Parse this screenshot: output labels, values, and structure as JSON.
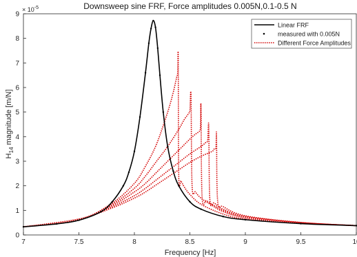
{
  "chart_data": {
    "type": "line",
    "title": "Downsweep sine FRF, Force amplitudes 0.005N,0.1-0.5 N",
    "xlabel": "Frequency [Hz]",
    "ylabel_main": "H",
    "ylabel_sub": "14",
    "ylabel_rest": " magnitude [m/N]",
    "y_exponent_base": "× 10",
    "y_exponent": "-5",
    "xlim": [
      7,
      10
    ],
    "ylim": [
      0,
      9
    ],
    "grid": false,
    "legend_position": "top-right",
    "xticks": [
      7,
      7.5,
      8,
      8.5,
      9,
      9.5,
      10
    ],
    "xtick_labels": [
      "7",
      "7.5",
      "8",
      "8.5",
      "9",
      "9.5",
      "10"
    ],
    "yticks": [
      0,
      1,
      2,
      3,
      4,
      5,
      6,
      7,
      8,
      9
    ],
    "ytick_labels": [
      "0",
      "1",
      "2",
      "3",
      "4",
      "5",
      "6",
      "7",
      "8",
      "9"
    ],
    "series": [
      {
        "name": "Linear FRF",
        "style": "solid",
        "color": "#000000",
        "x": [
          7.0,
          7.3,
          7.5,
          7.7,
          7.8,
          7.9,
          7.95,
          8.0,
          8.05,
          8.1,
          8.13,
          8.15,
          8.17,
          8.19,
          8.21,
          8.23,
          8.26,
          8.3,
          8.35,
          8.4,
          8.5,
          8.6,
          8.8,
          9.0,
          9.5,
          10.0
        ],
        "y": [
          0.33,
          0.45,
          0.6,
          0.95,
          1.35,
          2.0,
          2.55,
          3.4,
          4.8,
          6.6,
          7.8,
          8.4,
          8.72,
          8.45,
          7.6,
          6.5,
          5.0,
          3.6,
          2.6,
          2.0,
          1.35,
          1.05,
          0.75,
          0.62,
          0.46,
          0.38
        ]
      },
      {
        "name": "measured with 0.005N",
        "style": "dots",
        "color": "#000000",
        "x": [
          7.0,
          7.3,
          7.5,
          7.7,
          7.8,
          7.9,
          7.95,
          8.0,
          8.05,
          8.1,
          8.13,
          8.15,
          8.17,
          8.19,
          8.21,
          8.23,
          8.26,
          8.3,
          8.35,
          8.4,
          8.5,
          8.6,
          8.8,
          9.0,
          9.5,
          10.0
        ],
        "y": [
          0.33,
          0.45,
          0.6,
          0.95,
          1.35,
          2.0,
          2.55,
          3.4,
          4.8,
          6.6,
          7.8,
          8.4,
          8.72,
          8.45,
          7.6,
          6.5,
          5.0,
          3.6,
          2.6,
          2.0,
          1.35,
          1.05,
          0.75,
          0.62,
          0.46,
          0.38
        ]
      },
      {
        "name": "Different Force Amplitudes",
        "style": "dotted",
        "color": "#d40000",
        "curves": [
          {
            "x": [
              7.0,
              7.5,
              7.8,
              8.0,
              8.1,
              8.2,
              8.3,
              8.35,
              8.38,
              8.39,
              8.395,
              8.4,
              8.42,
              8.45,
              8.5,
              8.6,
              8.8,
              9.0,
              9.5,
              10.0
            ],
            "y": [
              0.33,
              0.62,
              1.3,
              2.1,
              2.8,
              3.7,
              5.0,
              5.8,
              6.4,
              6.6,
              7.25,
              2.35,
              2.2,
              1.95,
              1.65,
              1.25,
              0.85,
              0.65,
              0.48,
              0.38
            ]
          },
          {
            "x": [
              7.0,
              7.5,
              7.8,
              8.0,
              8.1,
              8.2,
              8.3,
              8.4,
              8.45,
              8.49,
              8.5,
              8.51,
              8.52,
              8.55,
              8.6,
              8.7,
              8.8,
              9.0,
              9.5,
              10.0
            ],
            "y": [
              0.33,
              0.63,
              1.25,
              1.9,
              2.4,
              3.0,
              3.6,
              4.3,
              4.7,
              4.95,
              5.05,
              5.7,
              2.0,
              1.75,
              1.5,
              1.2,
              0.95,
              0.7,
              0.49,
              0.38
            ]
          },
          {
            "x": [
              7.0,
              7.5,
              7.8,
              8.0,
              8.1,
              8.2,
              8.3,
              8.4,
              8.5,
              8.55,
              8.58,
              8.595,
              8.6,
              8.61,
              8.65,
              8.7,
              8.8,
              9.0,
              9.5,
              10.0
            ],
            "y": [
              0.33,
              0.64,
              1.2,
              1.75,
              2.1,
              2.55,
              3.0,
              3.45,
              3.9,
              4.1,
              4.2,
              4.35,
              5.25,
              1.55,
              1.4,
              1.25,
              1.0,
              0.72,
              0.5,
              0.38
            ]
          },
          {
            "x": [
              7.0,
              7.5,
              7.8,
              8.0,
              8.1,
              8.2,
              8.3,
              8.4,
              8.5,
              8.6,
              8.64,
              8.66,
              8.67,
              8.68,
              8.72,
              8.8,
              9.0,
              9.5,
              10.0
            ],
            "y": [
              0.33,
              0.64,
              1.15,
              1.6,
              1.9,
              2.25,
              2.6,
              2.95,
              3.3,
              3.6,
              3.75,
              3.85,
              4.45,
              1.45,
              1.3,
              1.05,
              0.75,
              0.5,
              0.38
            ]
          },
          {
            "x": [
              7.0,
              7.5,
              7.8,
              8.0,
              8.1,
              8.2,
              8.3,
              8.4,
              8.5,
              8.6,
              8.7,
              8.72,
              8.735,
              8.74,
              8.75,
              8.8,
              9.0,
              9.5,
              10.0
            ],
            "y": [
              0.33,
              0.65,
              1.1,
              1.5,
              1.75,
              2.05,
              2.35,
              2.65,
              2.95,
              3.2,
              3.4,
              3.5,
              3.55,
              4.1,
              1.4,
              1.15,
              0.78,
              0.51,
              0.38
            ]
          }
        ]
      }
    ]
  }
}
